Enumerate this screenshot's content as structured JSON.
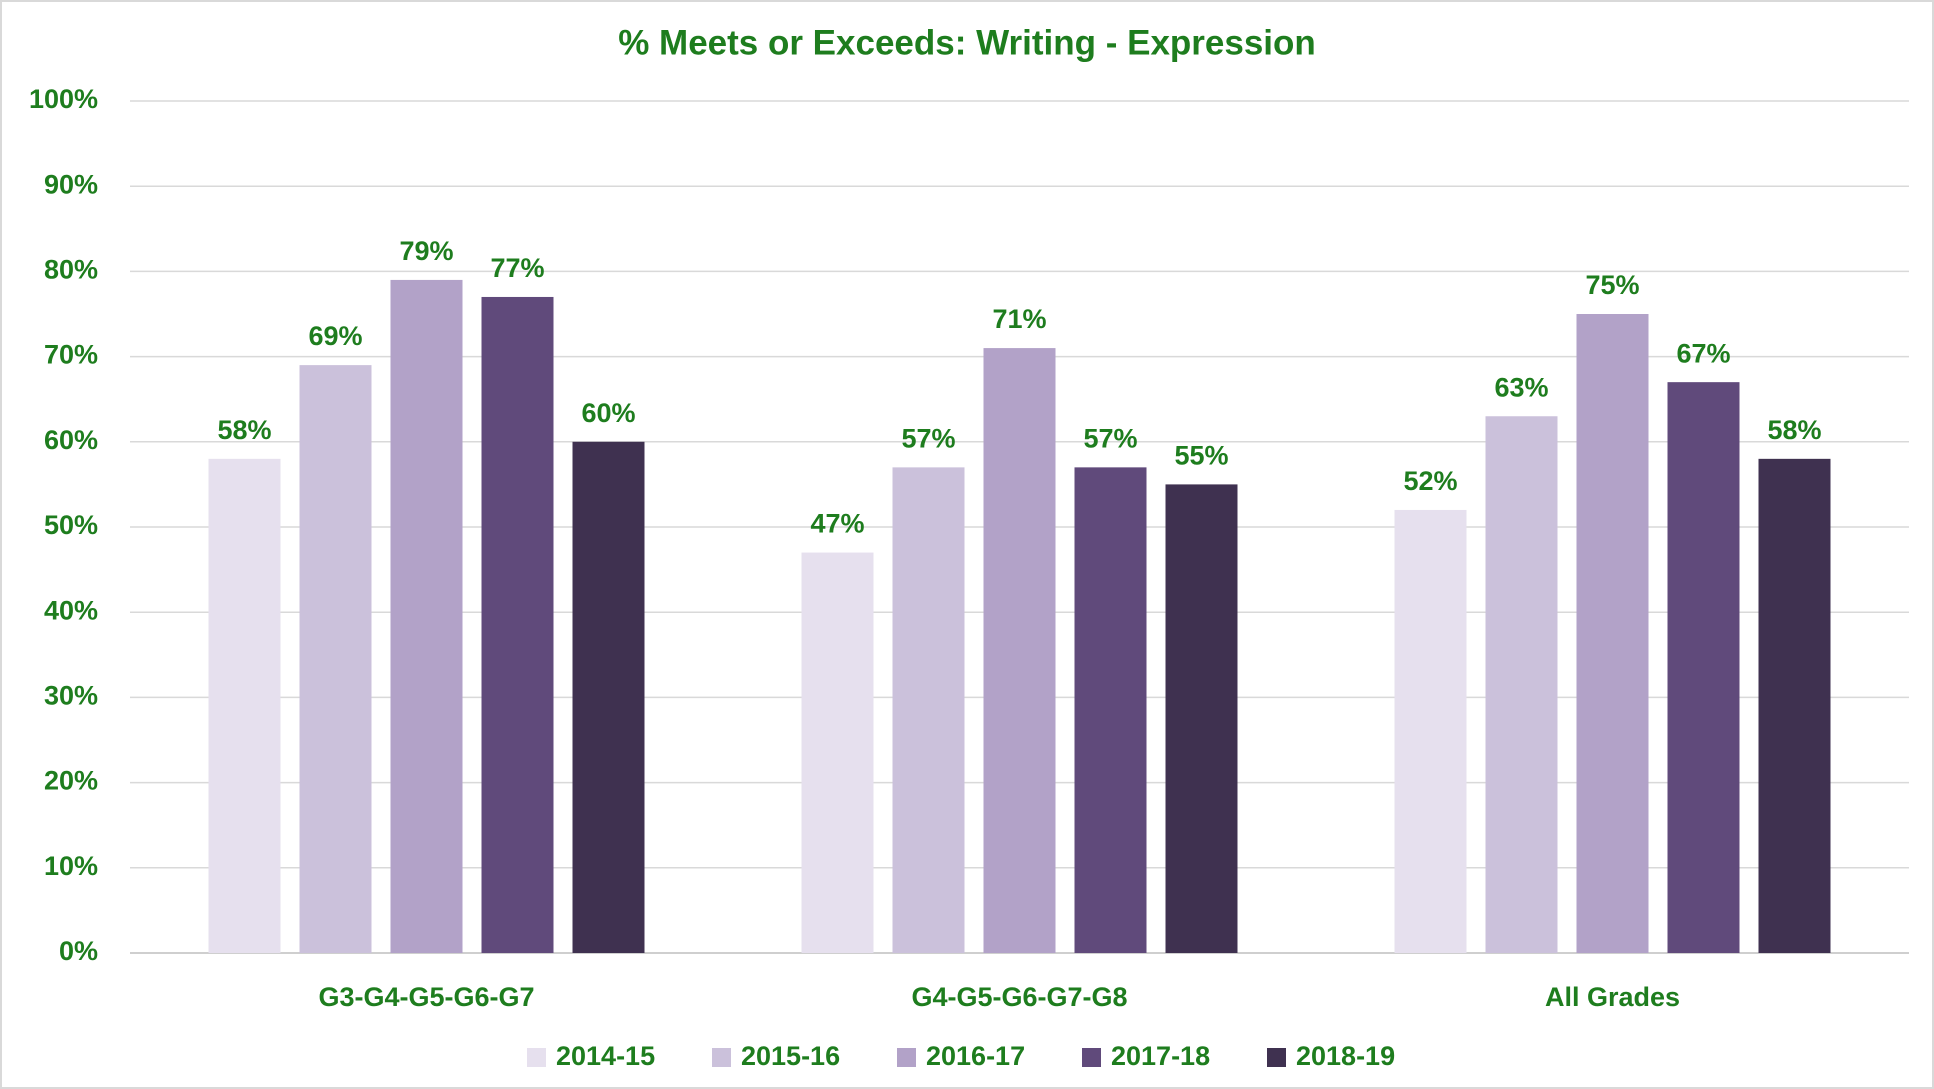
{
  "chart_data": {
    "type": "bar",
    "title": "% Meets or Exceeds: Writing - Expression",
    "categories": [
      "G3-G4-G5-G6-G7",
      "G4-G5-G6-G7-G8",
      "All Grades"
    ],
    "series": [
      {
        "name": "2014-15",
        "color": "#e6e0ee",
        "values": [
          58,
          47,
          52
        ],
        "value_labels": [
          "58%",
          "47%",
          "52%"
        ]
      },
      {
        "name": "2015-16",
        "color": "#cbc1db",
        "values": [
          69,
          57,
          63
        ],
        "value_labels": [
          "69%",
          "57%",
          "63%"
        ]
      },
      {
        "name": "2016-17",
        "color": "#b2a2c8",
        "values": [
          79,
          71,
          75
        ],
        "value_labels": [
          "79%",
          "71%",
          "75%"
        ]
      },
      {
        "name": "2017-18",
        "color": "#604a7b",
        "values": [
          77,
          57,
          67
        ],
        "value_labels": [
          "77%",
          "57%",
          "67%"
        ]
      },
      {
        "name": "2018-19",
        "color": "#3f3150",
        "values": [
          60,
          55,
          58
        ],
        "value_labels": [
          "60%",
          "55%",
          "58%"
        ]
      }
    ],
    "ylim": [
      0,
      100
    ],
    "yticks": [
      {
        "value": 0,
        "label": "0%"
      },
      {
        "value": 10,
        "label": "10%"
      },
      {
        "value": 20,
        "label": "20%"
      },
      {
        "value": 30,
        "label": "30%"
      },
      {
        "value": 40,
        "label": "40%"
      },
      {
        "value": 50,
        "label": "50%"
      },
      {
        "value": 60,
        "label": "60%"
      },
      {
        "value": 70,
        "label": "70%"
      },
      {
        "value": 80,
        "label": "80%"
      },
      {
        "value": 90,
        "label": "90%"
      },
      {
        "value": 100,
        "label": "100%"
      }
    ],
    "grid": true,
    "legend": "bottom"
  }
}
